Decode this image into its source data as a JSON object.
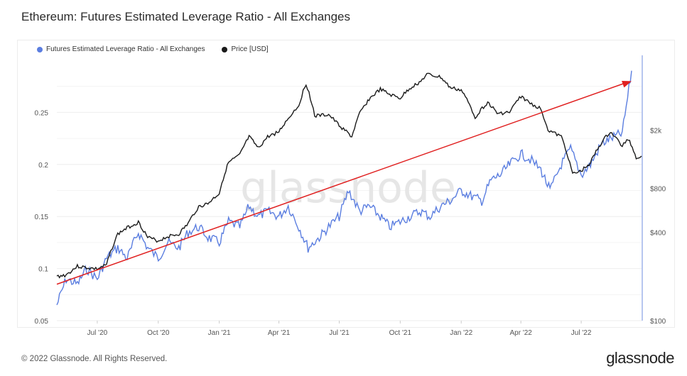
{
  "title": "Ethereum: Futures Estimated Leverage Ratio - All Exchanges",
  "footer": {
    "copyright": "© 2022 Glassnode. All Rights Reserved.",
    "logo": "glassnode"
  },
  "watermark": "glassnode",
  "colors": {
    "leverage": "#5b7ee0",
    "price": "#1a1a1a",
    "trend": "#e02020",
    "grid": "#eeeeee",
    "axis_text": "#555555"
  },
  "chart_data": {
    "type": "line",
    "title": "Ethereum: Futures Estimated Leverage Ratio - All Exchanges",
    "legend": {
      "placement": "top-left",
      "entries": [
        "Futures Estimated Leverage Ratio - All Exchanges",
        "Price [USD]"
      ]
    },
    "x_ticks": [
      "Jul '20",
      "Oct '20",
      "Jan '21",
      "Apr '21",
      "Jul '21",
      "Oct '21",
      "Jan '22",
      "Apr '22",
      "Jul '22"
    ],
    "x_range": [
      "2020-05-01",
      "2022-09-30"
    ],
    "y_left": {
      "ticks": [
        "0.05",
        "0.1",
        "0.15",
        "0.2",
        "0.25"
      ],
      "range": [
        0.05,
        0.3
      ]
    },
    "y_right": {
      "ticks": [
        "$100",
        "$400",
        "$800",
        "$2k"
      ],
      "scale": "log",
      "range": [
        100,
        6000
      ]
    },
    "grid": true,
    "series": [
      {
        "name": "Futures Estimated Leverage Ratio - All Exchanges",
        "axis": "left",
        "points": [
          [
            "2020-05-01",
            0.065
          ],
          [
            "2020-05-15",
            0.09
          ],
          [
            "2020-06-01",
            0.085
          ],
          [
            "2020-06-15",
            0.1
          ],
          [
            "2020-07-01",
            0.09
          ],
          [
            "2020-07-15",
            0.11
          ],
          [
            "2020-08-01",
            0.12
          ],
          [
            "2020-08-15",
            0.11
          ],
          [
            "2020-09-01",
            0.135
          ],
          [
            "2020-09-15",
            0.12
          ],
          [
            "2020-10-01",
            0.11
          ],
          [
            "2020-10-15",
            0.125
          ],
          [
            "2020-11-01",
            0.12
          ],
          [
            "2020-11-15",
            0.135
          ],
          [
            "2020-12-01",
            0.14
          ],
          [
            "2020-12-15",
            0.13
          ],
          [
            "2021-01-01",
            0.125
          ],
          [
            "2021-01-15",
            0.145
          ],
          [
            "2021-02-01",
            0.14
          ],
          [
            "2021-02-15",
            0.16
          ],
          [
            "2021-03-01",
            0.15
          ],
          [
            "2021-03-15",
            0.155
          ],
          [
            "2021-04-01",
            0.15
          ],
          [
            "2021-04-15",
            0.16
          ],
          [
            "2021-05-01",
            0.14
          ],
          [
            "2021-05-15",
            0.12
          ],
          [
            "2021-06-01",
            0.13
          ],
          [
            "2021-06-15",
            0.14
          ],
          [
            "2021-07-01",
            0.15
          ],
          [
            "2021-07-15",
            0.175
          ],
          [
            "2021-08-01",
            0.155
          ],
          [
            "2021-08-15",
            0.16
          ],
          [
            "2021-09-01",
            0.15
          ],
          [
            "2021-09-15",
            0.14
          ],
          [
            "2021-10-01",
            0.145
          ],
          [
            "2021-10-15",
            0.15
          ],
          [
            "2021-11-01",
            0.155
          ],
          [
            "2021-11-15",
            0.15
          ],
          [
            "2021-12-01",
            0.16
          ],
          [
            "2021-12-15",
            0.165
          ],
          [
            "2022-01-01",
            0.175
          ],
          [
            "2022-01-15",
            0.17
          ],
          [
            "2022-02-01",
            0.165
          ],
          [
            "2022-02-15",
            0.185
          ],
          [
            "2022-03-01",
            0.19
          ],
          [
            "2022-03-15",
            0.2
          ],
          [
            "2022-04-01",
            0.21
          ],
          [
            "2022-04-15",
            0.205
          ],
          [
            "2022-05-01",
            0.195
          ],
          [
            "2022-05-15",
            0.175
          ],
          [
            "2022-06-01",
            0.2
          ],
          [
            "2022-06-15",
            0.215
          ],
          [
            "2022-07-01",
            0.19
          ],
          [
            "2022-07-15",
            0.2
          ],
          [
            "2022-08-01",
            0.22
          ],
          [
            "2022-08-15",
            0.225
          ],
          [
            "2022-09-01",
            0.23
          ],
          [
            "2022-09-15",
            0.29
          ]
        ]
      },
      {
        "name": "Price [USD]",
        "axis": "right",
        "points": [
          [
            "2020-05-01",
            200
          ],
          [
            "2020-05-15",
            205
          ],
          [
            "2020-06-01",
            235
          ],
          [
            "2020-06-15",
            230
          ],
          [
            "2020-07-01",
            225
          ],
          [
            "2020-07-15",
            240
          ],
          [
            "2020-08-01",
            390
          ],
          [
            "2020-08-15",
            430
          ],
          [
            "2020-09-01",
            470
          ],
          [
            "2020-09-15",
            370
          ],
          [
            "2020-10-01",
            350
          ],
          [
            "2020-10-15",
            375
          ],
          [
            "2020-11-01",
            390
          ],
          [
            "2020-11-15",
            460
          ],
          [
            "2020-12-01",
            600
          ],
          [
            "2020-12-15",
            630
          ],
          [
            "2021-01-01",
            740
          ],
          [
            "2021-01-15",
            1200
          ],
          [
            "2021-02-01",
            1350
          ],
          [
            "2021-02-15",
            1800
          ],
          [
            "2021-03-01",
            1500
          ],
          [
            "2021-03-15",
            1800
          ],
          [
            "2021-04-01",
            1950
          ],
          [
            "2021-04-15",
            2400
          ],
          [
            "2021-05-01",
            2950
          ],
          [
            "2021-05-12",
            4150
          ],
          [
            "2021-05-25",
            2500
          ],
          [
            "2021-06-15",
            2550
          ],
          [
            "2021-07-01",
            2150
          ],
          [
            "2021-07-20",
            1800
          ],
          [
            "2021-08-01",
            2600
          ],
          [
            "2021-08-15",
            3250
          ],
          [
            "2021-09-01",
            3800
          ],
          [
            "2021-09-15",
            3500
          ],
          [
            "2021-10-01",
            3300
          ],
          [
            "2021-10-15",
            3850
          ],
          [
            "2021-11-01",
            4300
          ],
          [
            "2021-11-10",
            4800
          ],
          [
            "2021-12-01",
            4600
          ],
          [
            "2021-12-15",
            3900
          ],
          [
            "2022-01-01",
            3750
          ],
          [
            "2022-01-22",
            2450
          ],
          [
            "2022-02-10",
            3100
          ],
          [
            "2022-02-24",
            2600
          ],
          [
            "2022-03-15",
            2650
          ],
          [
            "2022-04-01",
            3400
          ],
          [
            "2022-04-15",
            3050
          ],
          [
            "2022-05-01",
            2800
          ],
          [
            "2022-05-12",
            2000
          ],
          [
            "2022-06-01",
            1800
          ],
          [
            "2022-06-18",
            1000
          ],
          [
            "2022-07-01",
            1050
          ],
          [
            "2022-07-15",
            1200
          ],
          [
            "2022-08-01",
            1650
          ],
          [
            "2022-08-14",
            1950
          ],
          [
            "2022-09-01",
            1550
          ],
          [
            "2022-09-10",
            1750
          ],
          [
            "2022-09-22",
            1300
          ],
          [
            "2022-09-30",
            1330
          ]
        ]
      }
    ],
    "annotations": [
      {
        "type": "arrow",
        "axis": "left",
        "from": [
          "2020-05-01",
          0.085
        ],
        "to": [
          "2022-09-15",
          0.28
        ]
      }
    ]
  }
}
